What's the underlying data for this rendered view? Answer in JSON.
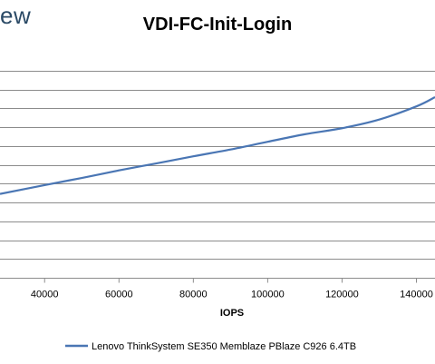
{
  "brand_fragment": "ew",
  "chart_data": {
    "type": "line",
    "title": "VDI-FC-Init-Login",
    "xlabel": "IOPS",
    "ylabel": "",
    "xlim": [
      28000,
      145000
    ],
    "ylim": [
      0,
      12
    ],
    "x_ticks": [
      40000,
      60000,
      80000,
      100000,
      120000,
      140000
    ],
    "y_gridlines": [
      1,
      2,
      3,
      4,
      5,
      6,
      7,
      8,
      9,
      10,
      11
    ],
    "grid": true,
    "legend_position": "bottom",
    "series": [
      {
        "name": "Lenovo ThinkSystem SE350 Memblaze PBlaze C926 6.4TB",
        "color": "#4a76b4",
        "x": [
          28000,
          40000,
          50000,
          60000,
          70000,
          80000,
          90000,
          100000,
          110000,
          120000,
          130000,
          140000,
          145000
        ],
        "y": [
          4.45,
          4.92,
          5.3,
          5.7,
          6.07,
          6.45,
          6.81,
          7.22,
          7.62,
          7.94,
          8.4,
          9.1,
          9.59
        ]
      }
    ]
  }
}
